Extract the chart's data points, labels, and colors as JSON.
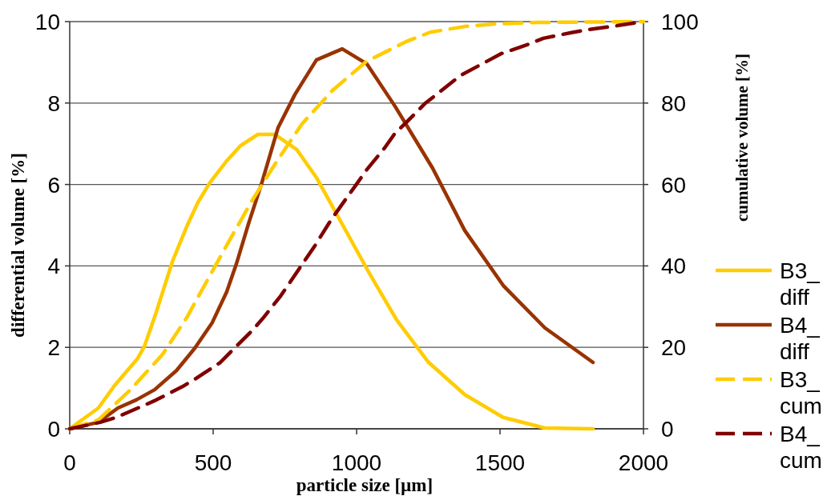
{
  "chart_data": {
    "type": "line",
    "xlabel": "particle size [µm]",
    "ylabel": "differential volume [%]",
    "y2label": "cumulative volume [%]",
    "xlim": [
      0,
      2000
    ],
    "xticks": [
      0,
      500,
      1000,
      1500,
      2000
    ],
    "ylim": [
      0,
      10
    ],
    "yticks": [
      0,
      2,
      4,
      6,
      8,
      10
    ],
    "y2lim": [
      0,
      100
    ],
    "y2ticks": [
      0,
      20,
      40,
      60,
      80,
      100
    ],
    "grid": "y",
    "legend": "right",
    "marker": "none",
    "series": [
      {
        "name": "B3_diff",
        "color": "#ffcc00",
        "line_style": "solid",
        "x": [
          0,
          100,
          156,
          237,
          260,
          302,
          358,
          408,
          447,
          489,
          545,
          595,
          656,
          715,
          791,
          860,
          1042,
          1140,
          1251,
          1377,
          1511,
          1656,
          1824
        ],
        "values": [
          0,
          0.51,
          1.06,
          1.73,
          2.02,
          2.87,
          4.11,
          4.97,
          5.56,
          6.05,
          6.56,
          6.95,
          7.23,
          7.23,
          6.86,
          6.17,
          3.85,
          2.67,
          1.63,
          0.84,
          0.28,
          0.02,
          0
        ]
      },
      {
        "name": "B4_diff",
        "color": "#993300",
        "line_style": "solid",
        "x": [
          0,
          100,
          168,
          232,
          296,
          372,
          436,
          497,
          547,
          581,
          623,
          670,
          726,
          785,
          860,
          950,
          1036,
          1134,
          1265,
          1377,
          1511,
          1656,
          1824
        ],
        "values": [
          0,
          0.16,
          0.51,
          0.71,
          0.96,
          1.43,
          1.98,
          2.61,
          3.36,
          4.05,
          5.03,
          6.05,
          7.39,
          8.21,
          9.06,
          9.33,
          8.96,
          7.92,
          6.4,
          4.87,
          3.52,
          2.48,
          1.63
        ]
      },
      {
        "name": "B3_cum",
        "color": "#ffcc00",
        "line_style": "dashed",
        "axis": "y2",
        "x": [
          0,
          100,
          212,
          324,
          408,
          483,
          561,
          637,
          721,
          810,
          916,
          1034,
          1173,
          1257,
          1377,
          1480,
          1637,
          2000
        ],
        "values": [
          0,
          2.2,
          9.6,
          18.3,
          27.3,
          36.9,
          46.8,
          56.2,
          65.6,
          74.9,
          83.1,
          90.2,
          95.1,
          97.4,
          98.8,
          99.4,
          99.8,
          100
        ]
      },
      {
        "name": "B4_cum",
        "color": "#800000",
        "line_style": "dashed",
        "axis": "y2",
        "x": [
          0,
          106,
          162,
          251,
          302,
          394,
          441,
          525,
          567,
          637,
          673,
          735,
          768,
          824,
          855,
          911,
          944,
          1000,
          1034,
          1098,
          1131,
          1201,
          1237,
          1321,
          1363,
          1453,
          1503,
          1601,
          1651,
          1749,
          1805,
          1908,
          2000
        ],
        "values": [
          0,
          1.6,
          2.8,
          5.5,
          7.1,
          10.4,
          12.4,
          16.3,
          19.3,
          24.2,
          27.1,
          32.6,
          36,
          41.8,
          45,
          51.3,
          54.6,
          60.1,
          63.5,
          69,
          72.3,
          77.2,
          79.8,
          84.5,
          86.8,
          90.2,
          92.1,
          94.5,
          95.9,
          97.3,
          98,
          99,
          100
        ]
      }
    ]
  }
}
